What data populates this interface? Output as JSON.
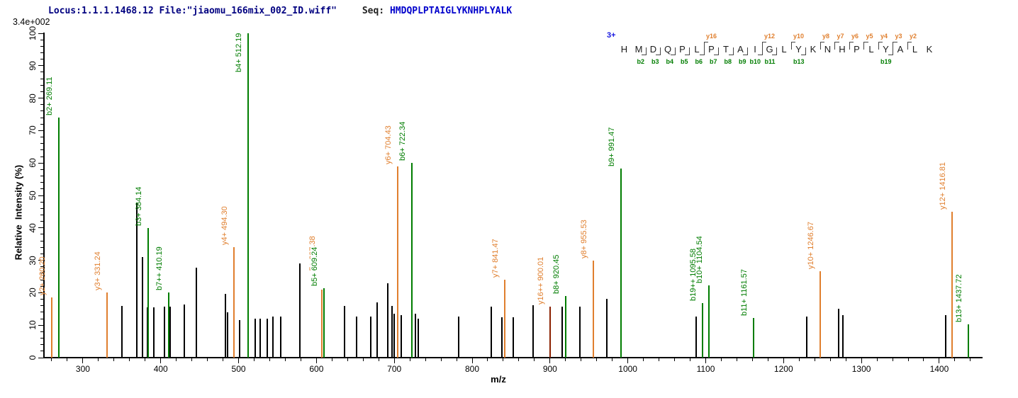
{
  "header": {
    "locus_text": "Locus:1.1.1.1468.12 File:\"jiaomu_166mix_002_ID.wiff\"",
    "seq_label": "Seq:",
    "sequence": "HMDQPLPTAIGLYKNHPLYALK",
    "max_intensity": "3.4e+002"
  },
  "axes": {
    "x_label": "m/z",
    "y_label": "Relative  Intensity (%)",
    "x_range": [
      250,
      1455
    ],
    "x_major_ticks": [
      300,
      400,
      500,
      600,
      700,
      800,
      900,
      1000,
      1100,
      1200,
      1300,
      1400
    ],
    "x_minor_step": 20,
    "y_range": [
      0,
      100
    ],
    "y_major_step": 10,
    "y_minor_step": 2
  },
  "colors": {
    "b_ion": "#007d00",
    "y_ion": "#e07f2e",
    "y16_peak": "#8b2000",
    "unassigned_peak": "#000000",
    "header_navy": "#000080",
    "sequence_blue": "#0000cc"
  },
  "peptide_panel": {
    "charge": "3+",
    "residues": [
      "H",
      "M",
      "D",
      "Q",
      "P",
      "L",
      "P",
      "T",
      "A",
      "I",
      "G",
      "L",
      "Y",
      "K",
      "N",
      "H",
      "P",
      "L",
      "Y",
      "A",
      "L",
      "K"
    ],
    "y_ions": [
      {
        "label": "y16",
        "after_residue": 6
      },
      {
        "label": "y12",
        "after_residue": 10
      },
      {
        "label": "y10",
        "after_residue": 12
      },
      {
        "label": "y8",
        "after_residue": 14
      },
      {
        "label": "y7",
        "after_residue": 15
      },
      {
        "label": "y6",
        "after_residue": 16
      },
      {
        "label": "y5",
        "after_residue": 17
      },
      {
        "label": "y4",
        "after_residue": 18
      },
      {
        "label": "y3",
        "after_residue": 19
      },
      {
        "label": "y2",
        "after_residue": 20
      }
    ],
    "b_ions": [
      {
        "label": "b2",
        "after_residue": 2
      },
      {
        "label": "b3",
        "after_residue": 3
      },
      {
        "label": "b4",
        "after_residue": 4
      },
      {
        "label": "b5",
        "after_residue": 5
      },
      {
        "label": "b6",
        "after_residue": 6
      },
      {
        "label": "b7",
        "after_residue": 7
      },
      {
        "label": "b8",
        "after_residue": 8
      },
      {
        "label": "b9",
        "after_residue": 9
      },
      {
        "label": "b10",
        "after_residue": 10
      },
      {
        "label": "b11",
        "after_residue": 11
      },
      {
        "label": "b13",
        "after_residue": 13
      },
      {
        "label": "b19",
        "after_residue": 19
      }
    ]
  },
  "chart_data": {
    "type": "bar",
    "subtype": "centroid-mass-spectrum",
    "title": "",
    "xlabel": "m/z",
    "ylabel": "Relative  Intensity (%)",
    "xlim": [
      250,
      1455
    ],
    "ylim": [
      0,
      100
    ],
    "grid": false,
    "max_intensity_annotation": "3.4e+002",
    "peaks": [
      {
        "mz": 260.2,
        "intensity": 18.5,
        "series": "y",
        "label": "y2+ 260.20"
      },
      {
        "mz": 269.11,
        "intensity": 74,
        "series": "b",
        "label": "b2+ 269.11"
      },
      {
        "mz": 331.24,
        "intensity": 20,
        "series": "y",
        "label": "y3+ 331.24"
      },
      {
        "mz": 350,
        "intensity": 16,
        "series": "unassigned",
        "label": null
      },
      {
        "mz": 369,
        "intensity": 47.5,
        "series": "unassigned",
        "label": null
      },
      {
        "mz": 377,
        "intensity": 31,
        "series": "unassigned",
        "label": null
      },
      {
        "mz": 383,
        "intensity": 15.5,
        "series": "unassigned",
        "label": null
      },
      {
        "mz": 384.14,
        "intensity": 40,
        "series": "b",
        "label": "b3+ 384.14"
      },
      {
        "mz": 391,
        "intensity": 15.5,
        "series": "unassigned",
        "label": null
      },
      {
        "mz": 405,
        "intensity": 15.7,
        "series": "unassigned",
        "label": null
      },
      {
        "mz": 410.19,
        "intensity": 20,
        "series": "b",
        "label": "b7++ 410.19"
      },
      {
        "mz": 412,
        "intensity": 15.7,
        "series": "unassigned",
        "label": null
      },
      {
        "mz": 430,
        "intensity": 16.4,
        "series": "unassigned",
        "label": null
      },
      {
        "mz": 446,
        "intensity": 27.7,
        "series": "unassigned",
        "label": null
      },
      {
        "mz": 483,
        "intensity": 19.6,
        "series": "unassigned",
        "label": null
      },
      {
        "mz": 486,
        "intensity": 14,
        "series": "unassigned",
        "label": null
      },
      {
        "mz": 494.3,
        "intensity": 34,
        "series": "y",
        "label": "y4+ 494.30"
      },
      {
        "mz": 501,
        "intensity": 11.6,
        "series": "unassigned",
        "label": null
      },
      {
        "mz": 512.19,
        "intensity": 100,
        "series": "b",
        "label": "b4+ 512.19"
      },
      {
        "mz": 521,
        "intensity": 12,
        "series": "unassigned",
        "label": null
      },
      {
        "mz": 528,
        "intensity": 12,
        "series": "unassigned",
        "label": null
      },
      {
        "mz": 537,
        "intensity": 12,
        "series": "unassigned",
        "label": null
      },
      {
        "mz": 544,
        "intensity": 12.7,
        "series": "unassigned",
        "label": null
      },
      {
        "mz": 554,
        "intensity": 12.7,
        "series": "unassigned",
        "label": null
      },
      {
        "mz": 579,
        "intensity": 29,
        "series": "unassigned",
        "label": null
      },
      {
        "mz": 607.38,
        "intensity": 21,
        "series": "y",
        "label": "y5+ 607.38",
        "label_dy": 18
      },
      {
        "mz": 609.24,
        "intensity": 21.5,
        "series": "b",
        "label": "b5+ 609.24",
        "label_bg": true
      },
      {
        "mz": 636,
        "intensity": 16,
        "series": "unassigned",
        "label": null
      },
      {
        "mz": 652,
        "intensity": 12.7,
        "series": "unassigned",
        "label": null
      },
      {
        "mz": 670,
        "intensity": 12.6,
        "series": "unassigned",
        "label": null
      },
      {
        "mz": 678,
        "intensity": 17,
        "series": "unassigned",
        "label": null
      },
      {
        "mz": 692,
        "intensity": 23,
        "series": "unassigned",
        "label": null
      },
      {
        "mz": 697,
        "intensity": 16,
        "series": "unassigned",
        "label": null
      },
      {
        "mz": 700,
        "intensity": 13.5,
        "series": "unassigned",
        "label": null
      },
      {
        "mz": 704.43,
        "intensity": 59,
        "series": "y",
        "label": "y6+ 704.43"
      },
      {
        "mz": 709,
        "intensity": 13,
        "series": "unassigned",
        "label": null
      },
      {
        "mz": 722.34,
        "intensity": 60,
        "series": "b",
        "label": "b6+ 722.34"
      },
      {
        "mz": 727,
        "intensity": 13.5,
        "series": "unassigned",
        "label": null
      },
      {
        "mz": 731,
        "intensity": 12,
        "series": "unassigned",
        "label": null
      },
      {
        "mz": 783,
        "intensity": 12.7,
        "series": "unassigned",
        "label": null
      },
      {
        "mz": 825,
        "intensity": 15.7,
        "series": "unassigned",
        "label": null
      },
      {
        "mz": 838,
        "intensity": 12.4,
        "series": "unassigned",
        "label": null
      },
      {
        "mz": 841.47,
        "intensity": 24,
        "series": "y",
        "label": "y7+ 841.47"
      },
      {
        "mz": 853,
        "intensity": 12.4,
        "series": "unassigned",
        "label": null
      },
      {
        "mz": 878,
        "intensity": 16.2,
        "series": "unassigned",
        "label": null
      },
      {
        "mz": 900.01,
        "intensity": 15.7,
        "series": "y16",
        "label": "y16++ 900.01"
      },
      {
        "mz": 916,
        "intensity": 15.7,
        "series": "unassigned",
        "label": null
      },
      {
        "mz": 920.45,
        "intensity": 19,
        "series": "b",
        "label": "b8+ 920.45"
      },
      {
        "mz": 938,
        "intensity": 15.7,
        "series": "unassigned",
        "label": null
      },
      {
        "mz": 955.53,
        "intensity": 30,
        "series": "y",
        "label": "y8+ 955.53"
      },
      {
        "mz": 973,
        "intensity": 18.2,
        "series": "unassigned",
        "label": null
      },
      {
        "mz": 991.47,
        "intensity": 58.3,
        "series": "b",
        "label": "b9+ 991.47"
      },
      {
        "mz": 1088,
        "intensity": 12.7,
        "series": "unassigned",
        "label": null
      },
      {
        "mz": 1095.58,
        "intensity": 16.8,
        "series": "b",
        "label": "b19++ 1095.58"
      },
      {
        "mz": 1104.54,
        "intensity": 22.3,
        "series": "b",
        "label": "b10+ 1104.54"
      },
      {
        "mz": 1161.57,
        "intensity": 12.2,
        "series": "b",
        "label": "b11+ 1161.57"
      },
      {
        "mz": 1230,
        "intensity": 12.6,
        "series": "unassigned",
        "label": null
      },
      {
        "mz": 1246.67,
        "intensity": 26.6,
        "series": "y",
        "label": "y10+ 1246.67"
      },
      {
        "mz": 1271,
        "intensity": 15,
        "series": "unassigned",
        "label": null
      },
      {
        "mz": 1276,
        "intensity": 13,
        "series": "unassigned",
        "label": null
      },
      {
        "mz": 1408,
        "intensity": 13,
        "series": "unassigned",
        "label": null
      },
      {
        "mz": 1416.81,
        "intensity": 45,
        "series": "y",
        "label": "y12+ 1416.81"
      },
      {
        "mz": 1437.72,
        "intensity": 10.3,
        "series": "b",
        "label": "b13+ 1437.72"
      }
    ]
  }
}
